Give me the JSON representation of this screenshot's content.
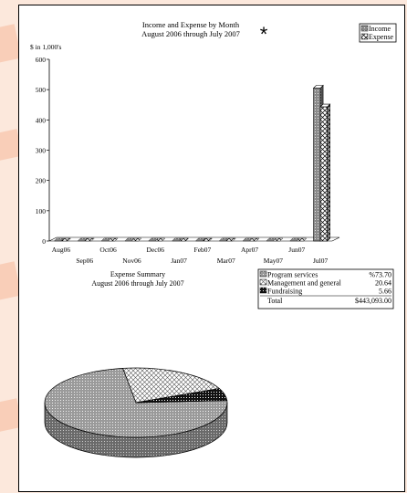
{
  "chart_data": [
    {
      "type": "bar",
      "style": "3d-clustered",
      "title": "Income and Expense by Month",
      "subtitle": "August 2006 through July 2007",
      "ylabel": "$ in 1,000's",
      "ylim": [
        0,
        600
      ],
      "yticks": [
        "0",
        "100",
        "200",
        "300",
        "400",
        "500",
        "600"
      ],
      "categories": [
        "Aug06",
        "Sep06",
        "Oct06",
        "Nov06",
        "Dec06",
        "Jan07",
        "Feb07",
        "Mar07",
        "Apr07",
        "May07",
        "Jun07",
        "Jul07"
      ],
      "series": [
        {
          "name": "Income",
          "values": [
            0,
            0,
            0,
            0,
            0,
            0,
            0,
            0,
            0,
            0,
            0,
            505
          ]
        },
        {
          "name": "Expense",
          "values": [
            0,
            0,
            0,
            0,
            0,
            0,
            0,
            0,
            0,
            0,
            0,
            443
          ]
        }
      ],
      "legend": "top-right",
      "grid": false
    },
    {
      "type": "pie",
      "style": "3d",
      "title": "Expense Summary",
      "subtitle": "August 2006 through July 2007",
      "slices": [
        {
          "label": "Program services",
          "value": 73.7,
          "display": "%73.70"
        },
        {
          "label": "Management and general",
          "value": 20.64,
          "display": "20.64"
        },
        {
          "label": "Fundraising",
          "value": 5.66,
          "display": "5.66"
        }
      ],
      "total_label": "Total",
      "total_value": "$443,093.00",
      "legend": "right"
    }
  ],
  "marker": "*",
  "colors": {
    "page": "#ffffff",
    "ink": "#000000",
    "background": "#fce8dc",
    "watermark": "#f6b89a"
  }
}
